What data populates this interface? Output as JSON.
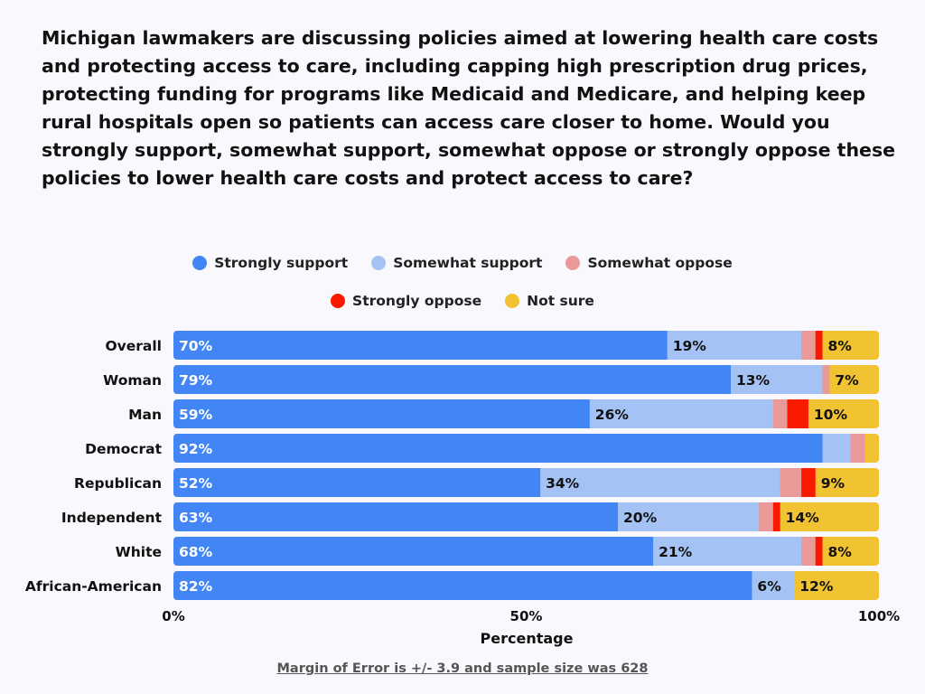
{
  "chart_data": {
    "type": "bar",
    "orientation": "horizontal",
    "stacked": true,
    "title": "Michigan lawmakers are discussing policies aimed at lowering health care costs and protecting access to care, including capping high prescription drug prices, protecting funding for programs like Medicaid and Medicare, and helping keep rural hospitals open so patients can access care closer to home. Would you strongly support, somewhat support, somewhat oppose or strongly oppose these policies to lower health care costs and protect access to care?",
    "xlabel": "Percentage",
    "ylabel": "",
    "xlim": [
      0,
      100
    ],
    "x_ticks": [
      "0%",
      "50%",
      "100%"
    ],
    "legend_position": "top",
    "grid": false,
    "categories": [
      "Overall",
      "Woman",
      "Man",
      "Democrat",
      "Republican",
      "Independent",
      "White",
      "African-American"
    ],
    "series": [
      {
        "name": "Strongly support",
        "color": "#4285f4",
        "values": [
          70,
          79,
          59,
          92,
          52,
          63,
          68,
          82
        ]
      },
      {
        "name": "Somewhat support",
        "color": "#a4c2f4",
        "values": [
          19,
          13,
          26,
          4,
          34,
          20,
          21,
          6
        ]
      },
      {
        "name": "Somewhat oppose",
        "color": "#ea9999",
        "values": [
          2,
          1,
          2,
          2,
          3,
          2,
          2,
          0
        ]
      },
      {
        "name": "Strongly oppose",
        "color": "#fa1a00",
        "values": [
          1,
          0,
          3,
          0,
          2,
          1,
          1,
          0
        ]
      },
      {
        "name": "Not sure",
        "color": "#f1c232",
        "values": [
          8,
          7,
          10,
          2,
          9,
          14,
          8,
          12
        ]
      }
    ]
  },
  "footer": "Margin of Error is +/- 3.9 and sample size was 628"
}
